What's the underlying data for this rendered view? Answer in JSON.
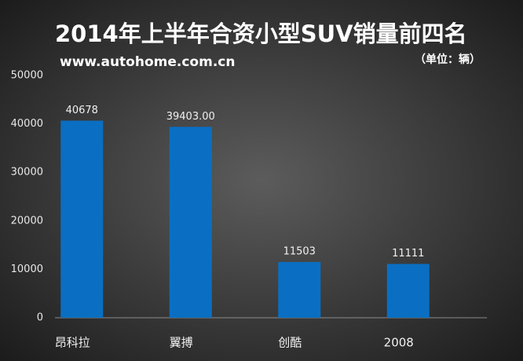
{
  "chart_data": {
    "type": "bar",
    "title": "2014年上半年合资小型SUV销量前四名",
    "subtitle": "www.autohome.com.cn",
    "unit": "（单位：辆）",
    "categories": [
      "昂科拉",
      "翼搏",
      "创酷",
      "2008"
    ],
    "values": [
      40678,
      39403,
      11503,
      11111
    ],
    "value_labels": [
      "40678",
      "39403.00",
      "11503",
      "11111"
    ],
    "color": "#0a6fc2",
    "ylim": [
      0,
      50000
    ],
    "yticks": [
      0,
      10000,
      20000,
      30000,
      40000,
      50000
    ],
    "grid": false
  }
}
